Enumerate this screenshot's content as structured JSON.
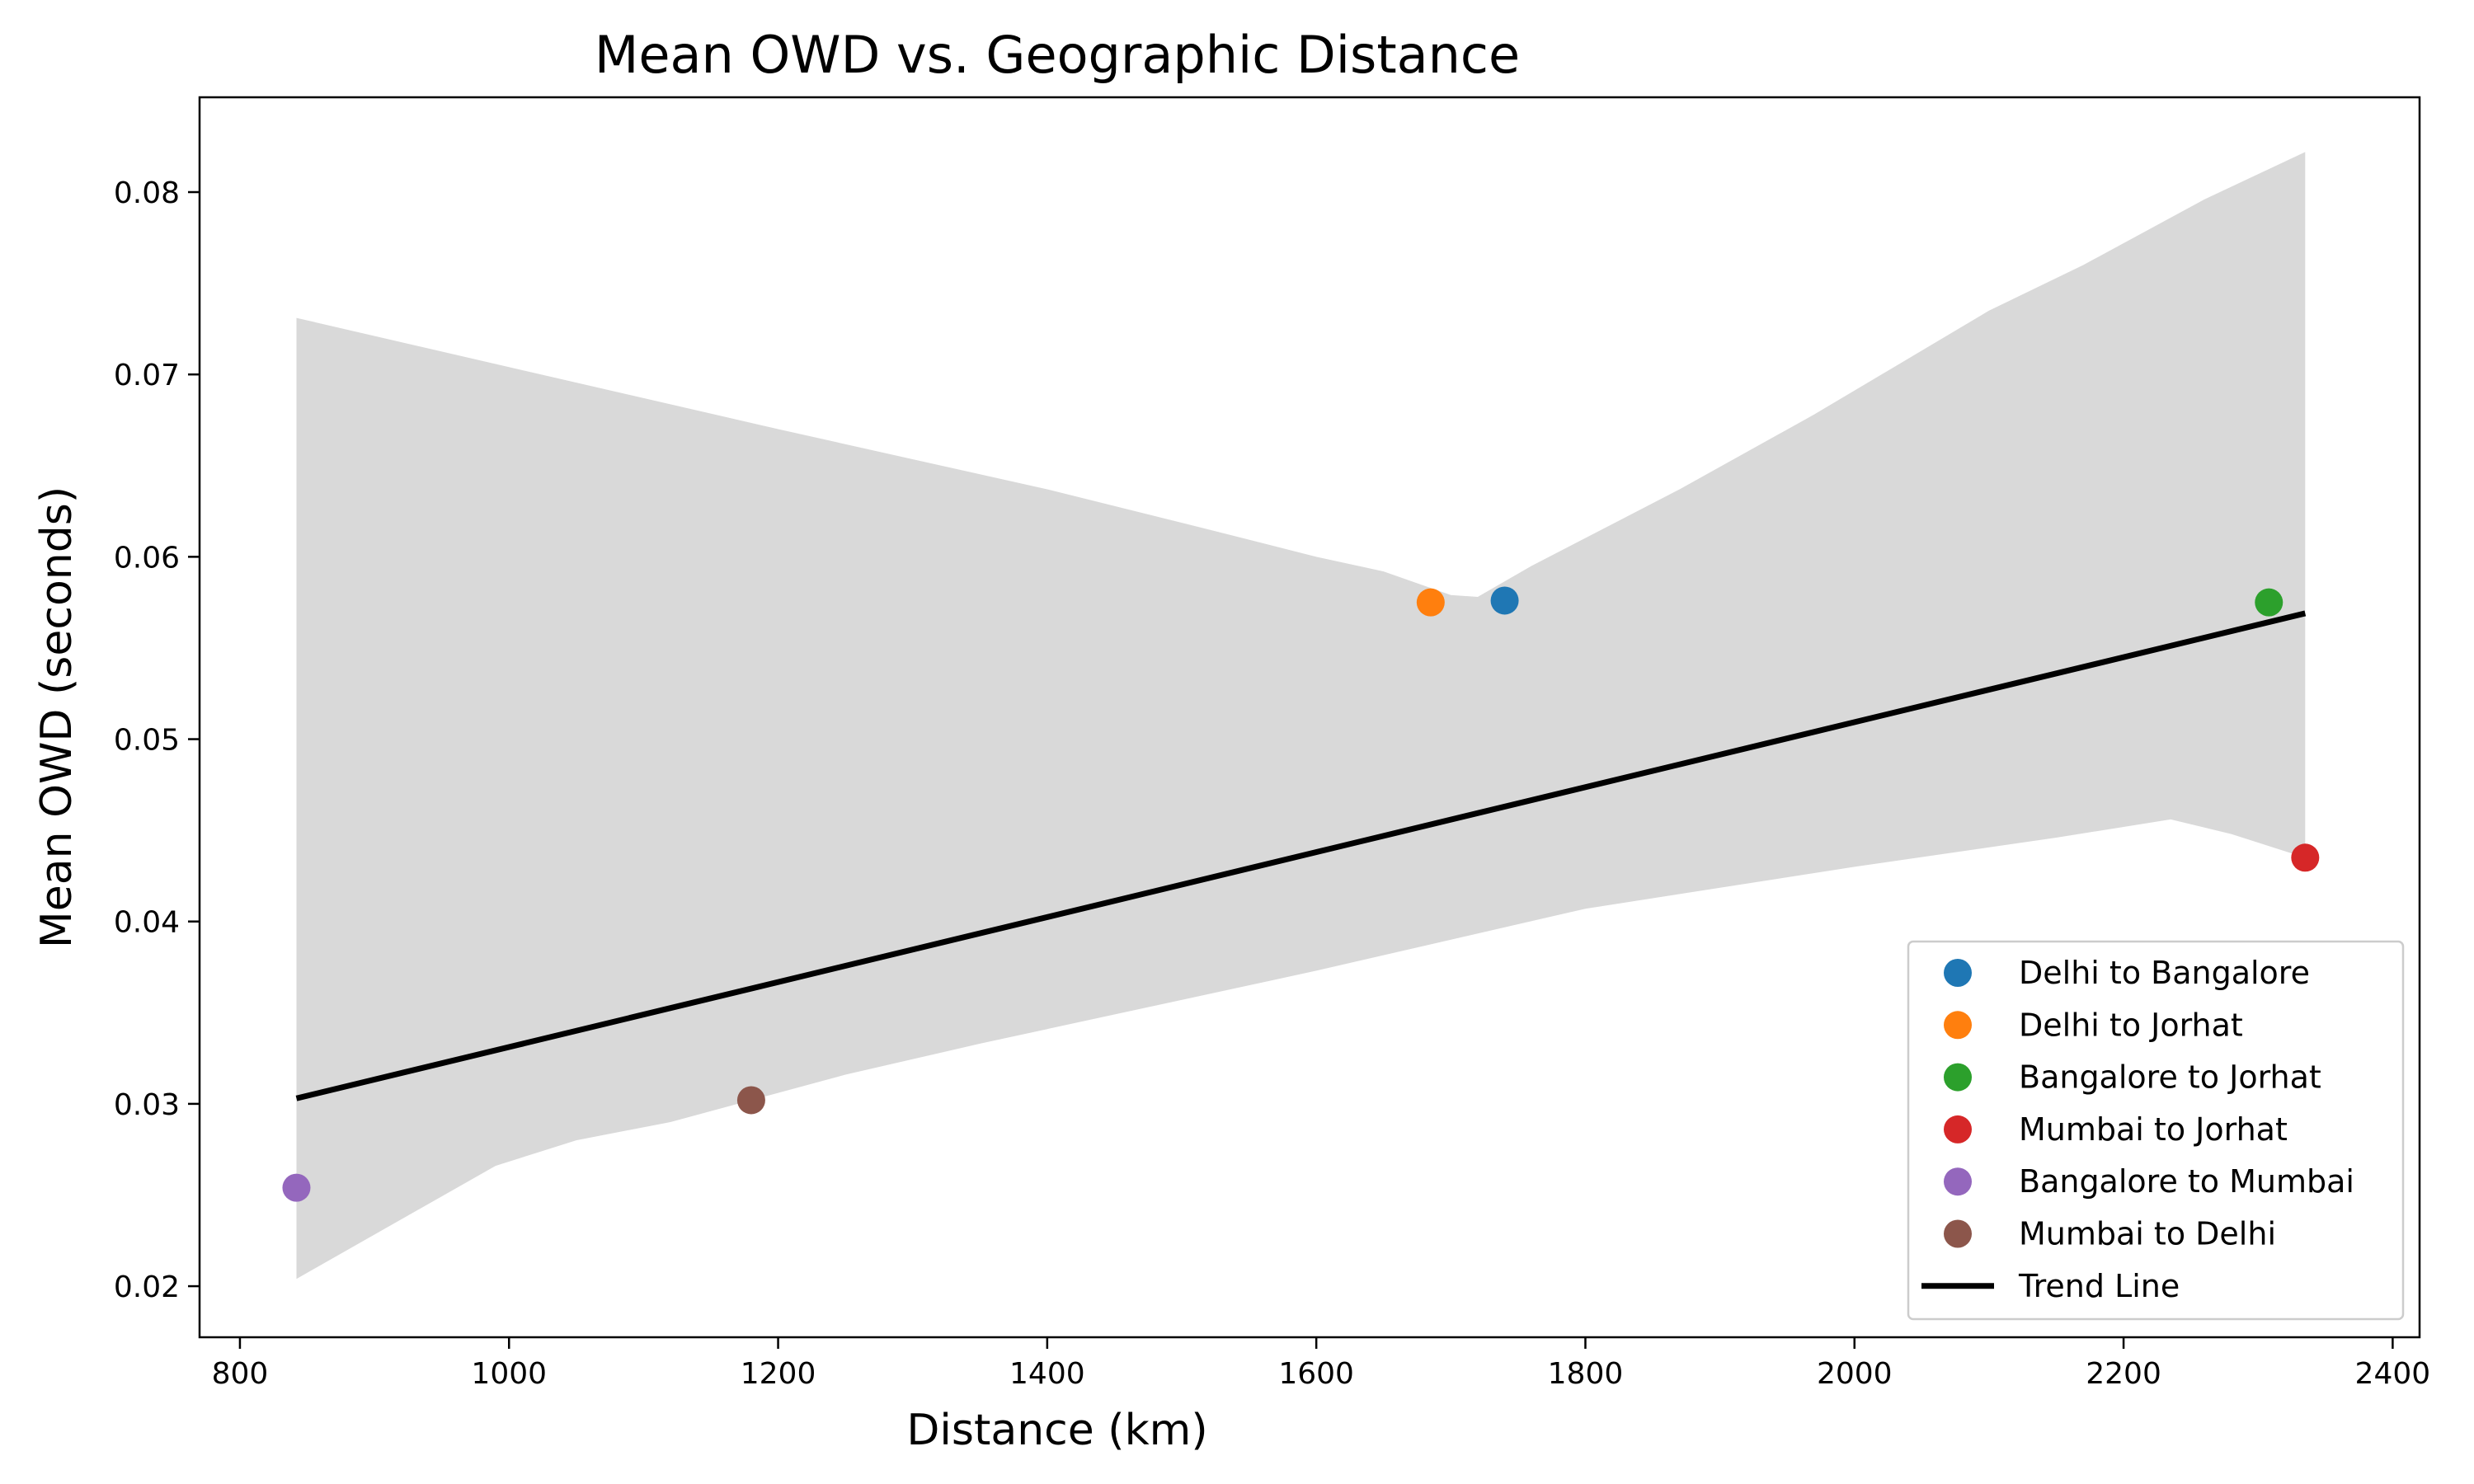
{
  "chart_data": {
    "type": "scatter",
    "title": "Mean OWD vs. Geographic Distance",
    "xlabel": "Distance (km)",
    "ylabel": "Mean OWD (seconds)",
    "xlim": [
      770,
      2420
    ],
    "ylim": [
      0.0172,
      0.0852
    ],
    "xticks": [
      800,
      1000,
      1200,
      1400,
      1600,
      1800,
      2000,
      2200,
      2400
    ],
    "xtick_labels": [
      "800",
      "1000",
      "1200",
      "1400",
      "1600",
      "1800",
      "2000",
      "2200",
      "2400"
    ],
    "yticks": [
      0.02,
      0.03,
      0.04,
      0.05,
      0.06,
      0.07,
      0.08
    ],
    "ytick_labels": [
      "0.02",
      "0.03",
      "0.04",
      "0.05",
      "0.06",
      "0.07",
      "0.08"
    ],
    "grid": false,
    "legend_position": "lower-right",
    "series": [
      {
        "name": "Delhi to Bangalore",
        "color": "#1f77b4",
        "x": 1740,
        "y": 0.0576
      },
      {
        "name": "Delhi to Jorhat",
        "color": "#ff7f0e",
        "x": 1685,
        "y": 0.0575
      },
      {
        "name": "Bangalore to Jorhat",
        "color": "#2ca02c",
        "x": 2308,
        "y": 0.0575
      },
      {
        "name": "Mumbai to Jorhat",
        "color": "#d62728",
        "x": 2335,
        "y": 0.0435
      },
      {
        "name": "Bangalore to Mumbai",
        "color": "#9467bd",
        "x": 842,
        "y": 0.0254
      },
      {
        "name": "Mumbai to Delhi",
        "color": "#8c564b",
        "x": 1180,
        "y": 0.0302
      }
    ],
    "trend_line": {
      "name": "Trend Line",
      "color": "#000000",
      "points": [
        [
          842,
          0.0303
        ],
        [
          2335,
          0.0569
        ]
      ]
    },
    "confidence_band": {
      "color": "#d9d9d9",
      "upper": [
        [
          842,
          0.0731
        ],
        [
          1000,
          0.0704
        ],
        [
          1200,
          0.067
        ],
        [
          1400,
          0.0637
        ],
        [
          1520,
          0.0615
        ],
        [
          1600,
          0.06
        ],
        [
          1650,
          0.0592
        ],
        [
          1700,
          0.0579
        ],
        [
          1720,
          0.0578
        ],
        [
          1760,
          0.0595
        ],
        [
          1870,
          0.0637
        ],
        [
          1970,
          0.0678
        ],
        [
          2100,
          0.0735
        ],
        [
          2170,
          0.076
        ],
        [
          2260,
          0.0796
        ],
        [
          2335,
          0.0822
        ]
      ],
      "lower": [
        [
          842,
          0.0204
        ],
        [
          990,
          0.0266
        ],
        [
          1050,
          0.028
        ],
        [
          1120,
          0.029
        ],
        [
          1250,
          0.0316
        ],
        [
          1350,
          0.0333
        ],
        [
          1600,
          0.0373
        ],
        [
          1800,
          0.0407
        ],
        [
          2000,
          0.043
        ],
        [
          2150,
          0.0446
        ],
        [
          2235,
          0.0456
        ],
        [
          2280,
          0.0448
        ],
        [
          2335,
          0.0435
        ]
      ]
    }
  }
}
